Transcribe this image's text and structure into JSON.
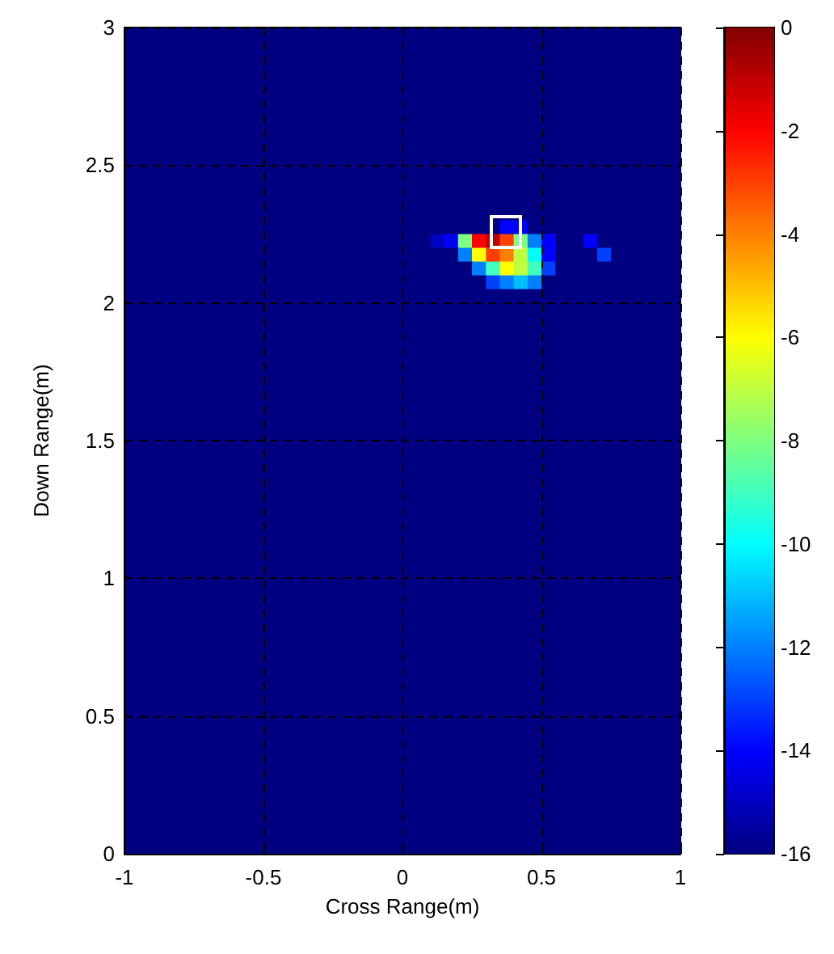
{
  "chart_data": {
    "type": "heatmap",
    "xlabel": "Cross Range(m)",
    "ylabel": "Down Range(m)",
    "xlim": [
      -1,
      1
    ],
    "ylim": [
      0,
      3
    ],
    "xticks": [
      -1,
      -0.5,
      0,
      0.5,
      1
    ],
    "yticks": [
      0,
      0.5,
      1,
      1.5,
      2,
      2.5,
      3
    ],
    "grid": true,
    "clim": [
      -16,
      0
    ],
    "cticks": [
      -16,
      -14,
      -12,
      -10,
      -8,
      -6,
      -4,
      -2,
      0
    ],
    "x": [
      -0.975,
      -0.925,
      -0.875,
      -0.825,
      -0.775,
      -0.725,
      -0.675,
      -0.625,
      -0.575,
      -0.525,
      -0.475,
      -0.425,
      -0.375,
      -0.325,
      -0.275,
      -0.225,
      -0.175,
      -0.125,
      -0.075,
      -0.025,
      0.025,
      0.075,
      0.125,
      0.175,
      0.225,
      0.275,
      0.325,
      0.375,
      0.425,
      0.475,
      0.525,
      0.575,
      0.625,
      0.675,
      0.725,
      0.775,
      0.825,
      0.875,
      0.925,
      0.975
    ],
    "y": [
      2.975,
      2.925,
      2.875,
      2.825,
      2.775,
      2.725,
      2.675,
      2.625,
      2.575,
      2.525,
      2.475,
      2.425,
      2.375,
      2.325,
      2.275,
      2.225,
      2.175,
      2.125,
      2.075,
      2.025,
      1.975,
      1.925,
      1.875,
      1.825,
      1.775,
      1.725,
      1.675,
      1.625,
      1.575,
      1.525,
      1.475,
      1.425,
      1.375,
      1.325,
      1.275,
      1.225,
      1.175,
      1.125,
      1.075,
      1.025,
      0.975,
      0.925,
      0.875,
      0.825,
      0.775,
      0.725,
      0.675,
      0.625,
      0.575,
      0.525,
      0.475,
      0.425,
      0.375,
      0.325,
      0.275,
      0.225,
      0.175,
      0.125,
      0.075,
      0.025
    ],
    "cells": [
      [
        -16,
        -16,
        -16,
        -16,
        -16,
        -16,
        -16,
        -16,
        -16,
        -16,
        -16,
        -16,
        -16,
        -16,
        -16,
        -16,
        -16,
        -16,
        -16,
        -16,
        -16,
        -16,
        -16,
        -16,
        -16,
        -16,
        -16,
        -16,
        -16,
        -16,
        -16,
        -16,
        -16,
        -16,
        -16,
        -16,
        -16,
        -16,
        -16,
        -16
      ],
      [
        -16,
        -16,
        -16,
        -16,
        -16,
        -16,
        -16,
        -16,
        -16,
        -16,
        -16,
        -16,
        -16,
        -16,
        -16,
        -16,
        -16,
        -16,
        -16,
        -16,
        -16,
        -16,
        -16,
        -16,
        -16,
        -16,
        -16,
        -16,
        -16,
        -16,
        -16,
        -16,
        -16,
        -16,
        -16,
        -16,
        -16,
        -16,
        -16,
        -16
      ],
      [
        -16,
        -16,
        -16,
        -16,
        -16,
        -16,
        -16,
        -16,
        -16,
        -16,
        -16,
        -16,
        -16,
        -16,
        -16,
        -16,
        -16,
        -16,
        -16,
        -16,
        -16,
        -16,
        -16,
        -16,
        -16,
        -16,
        -16,
        -16,
        -16,
        -16,
        -16,
        -16,
        -16,
        -16,
        -16,
        -16,
        -16,
        -16,
        -16,
        -16
      ],
      [
        -16,
        -16,
        -16,
        -16,
        -16,
        -16,
        -16,
        -16,
        -16,
        -16,
        -16,
        -16,
        -16,
        -16,
        -16,
        -16,
        -16,
        -16,
        -16,
        -16,
        -16,
        -16,
        -16,
        -16,
        -16,
        -16,
        -16,
        -16,
        -16,
        -16,
        -16,
        -16,
        -16,
        -16,
        -16,
        -16,
        -16,
        -16,
        -16,
        -16
      ],
      [
        -16,
        -16,
        -16,
        -16,
        -16,
        -16,
        -16,
        -16,
        -16,
        -16,
        -16,
        -16,
        -16,
        -16,
        -16,
        -16,
        -16,
        -16,
        -16,
        -16,
        -16,
        -16,
        -16,
        -16,
        -16,
        -16,
        -16,
        -16,
        -16,
        -16,
        -16,
        -16,
        -16,
        -16,
        -16,
        -16,
        -16,
        -16,
        -16,
        -16
      ],
      [
        -16,
        -16,
        -16,
        -16,
        -16,
        -16,
        -16,
        -16,
        -16,
        -16,
        -16,
        -16,
        -16,
        -16,
        -16,
        -16,
        -16,
        -16,
        -16,
        -16,
        -16,
        -16,
        -16,
        -16,
        -16,
        -16,
        -16,
        -16,
        -16,
        -16,
        -16,
        -16,
        -16,
        -16,
        -16,
        -16,
        -16,
        -16,
        -16,
        -16
      ],
      [
        -16,
        -16,
        -16,
        -16,
        -16,
        -16,
        -16,
        -16,
        -16,
        -16,
        -16,
        -16,
        -16,
        -16,
        -16,
        -16,
        -16,
        -16,
        -16,
        -16,
        -16,
        -16,
        -16,
        -16,
        -16,
        -16,
        -16,
        -16,
        -16,
        -16,
        -16,
        -16,
        -16,
        -16,
        -16,
        -16,
        -16,
        -16,
        -16,
        -16
      ],
      [
        -16,
        -16,
        -16,
        -16,
        -16,
        -16,
        -16,
        -16,
        -16,
        -16,
        -16,
        -16,
        -16,
        -16,
        -16,
        -16,
        -16,
        -16,
        -16,
        -16,
        -16,
        -16,
        -16,
        -16,
        -16,
        -16,
        -16,
        -16,
        -16,
        -16,
        -16,
        -16,
        -16,
        -16,
        -16,
        -16,
        -16,
        -16,
        -16,
        -16
      ],
      [
        -16,
        -16,
        -16,
        -16,
        -16,
        -16,
        -16,
        -16,
        -16,
        -16,
        -16,
        -16,
        -16,
        -16,
        -16,
        -16,
        -16,
        -16,
        -16,
        -16,
        -16,
        -16,
        -16,
        -16,
        -16,
        -16,
        -16,
        -16,
        -16,
        -16,
        -16,
        -16,
        -16,
        -16,
        -16,
        -16,
        -16,
        -16,
        -16,
        -16
      ],
      [
        -16,
        -16,
        -16,
        -16,
        -16,
        -16,
        -16,
        -16,
        -16,
        -16,
        -16,
        -16,
        -16,
        -16,
        -16,
        -16,
        -16,
        -16,
        -16,
        -16,
        -16,
        -16,
        -16,
        -16,
        -16,
        -16,
        -16,
        -16,
        -16,
        -16,
        -16,
        -16,
        -16,
        -16,
        -16,
        -16,
        -16,
        -16,
        -16,
        -16
      ],
      [
        -16,
        -16,
        -16,
        -16,
        -16,
        -16,
        -16,
        -16,
        -16,
        -16,
        -16,
        -16,
        -16,
        -16,
        -16,
        -16,
        -16,
        -16,
        -16,
        -16,
        -16,
        -16,
        -16,
        -16,
        -16,
        -16,
        -16,
        -16,
        -16,
        -16,
        -16,
        -16,
        -16,
        -16,
        -16,
        -16,
        -16,
        -16,
        -16,
        -16
      ],
      [
        -16,
        -16,
        -16,
        -16,
        -16,
        -16,
        -16,
        -16,
        -16,
        -16,
        -16,
        -16,
        -16,
        -16,
        -16,
        -16,
        -16,
        -16,
        -16,
        -16,
        -16,
        -16,
        -16,
        -16,
        -16,
        -16,
        -16,
        -16,
        -16,
        -16,
        -16,
        -16,
        -16,
        -16,
        -16,
        -16,
        -16,
        -16,
        -16,
        -16
      ],
      [
        -16,
        -16,
        -16,
        -16,
        -16,
        -16,
        -16,
        -16,
        -16,
        -16,
        -16,
        -16,
        -16,
        -16,
        -16,
        -16,
        -16,
        -16,
        -16,
        -16,
        -16,
        -16,
        -16,
        -16,
        -16,
        -16,
        -16,
        -16,
        -16,
        -16,
        -16,
        -16,
        -16,
        -16,
        -16,
        -16,
        -16,
        -16,
        -16,
        -16
      ],
      [
        -16,
        -16,
        -16,
        -16,
        -16,
        -16,
        -16,
        -16,
        -16,
        -16,
        -16,
        -16,
        -16,
        -16,
        -16,
        -16,
        -16,
        -16,
        -16,
        -16,
        -16,
        -16,
        -16,
        -16,
        -16,
        -16,
        -16,
        -16,
        -16,
        -16,
        -16,
        -16,
        -16,
        -16,
        -16,
        -16,
        -16,
        -16,
        -16,
        -16
      ],
      [
        -16,
        -16,
        -16,
        -16,
        -16,
        -16,
        -16,
        -16,
        -16,
        -16,
        -16,
        -16,
        -16,
        -16,
        -16,
        -16,
        -16,
        -16,
        -16,
        -16,
        -16,
        -16,
        -16,
        -16,
        -16,
        -16,
        -16,
        -14,
        -14,
        -16,
        -16,
        -16,
        -16,
        -16,
        -16,
        -16,
        -16,
        -16,
        -16,
        -16
      ],
      [
        -16,
        -16,
        -16,
        -16,
        -16,
        -16,
        -16,
        -16,
        -16,
        -16,
        -16,
        -16,
        -16,
        -16,
        -16,
        -16,
        -16,
        -16,
        -16,
        -16,
        -16,
        -16,
        -15,
        -14,
        -8,
        -2,
        -1,
        -3,
        -8,
        -12,
        -14,
        -16,
        -16,
        -14,
        -16,
        -16,
        -16,
        -16,
        -16,
        -16
      ],
      [
        -16,
        -16,
        -16,
        -16,
        -16,
        -16,
        -16,
        -16,
        -16,
        -16,
        -16,
        -16,
        -16,
        -16,
        -16,
        -16,
        -16,
        -16,
        -16,
        -16,
        -16,
        -16,
        -16,
        -16,
        -12,
        -6,
        -3,
        -4,
        -7,
        -10,
        -14,
        -16,
        -16,
        -16,
        -13,
        -16,
        -16,
        -16,
        -16,
        -16
      ],
      [
        -16,
        -16,
        -16,
        -16,
        -16,
        -16,
        -16,
        -16,
        -16,
        -16,
        -16,
        -16,
        -16,
        -16,
        -16,
        -16,
        -16,
        -16,
        -16,
        -16,
        -16,
        -16,
        -16,
        -16,
        -16,
        -12,
        -9,
        -6,
        -7,
        -9,
        -13,
        -16,
        -16,
        -16,
        -16,
        -16,
        -16,
        -16,
        -16,
        -16
      ],
      [
        -16,
        -16,
        -16,
        -16,
        -16,
        -16,
        -16,
        -16,
        -16,
        -16,
        -16,
        -16,
        -16,
        -16,
        -16,
        -16,
        -16,
        -16,
        -16,
        -16,
        -16,
        -16,
        -16,
        -16,
        -16,
        -16,
        -13,
        -12,
        -11,
        -12,
        -16,
        -16,
        -16,
        -16,
        -16,
        -16,
        -16,
        -16,
        -16,
        -16
      ],
      [
        -16,
        -16,
        -16,
        -16,
        -16,
        -16,
        -16,
        -16,
        -16,
        -16,
        -16,
        -16,
        -16,
        -16,
        -16,
        -16,
        -16,
        -16,
        -16,
        -16,
        -16,
        -16,
        -16,
        -16,
        -16,
        -16,
        -16,
        -16,
        -16,
        -16,
        -16,
        -16,
        -16,
        -16,
        -16,
        -16,
        -16,
        -16,
        -16,
        -16
      ],
      [
        -16,
        -16,
        -16,
        -16,
        -16,
        -16,
        -16,
        -16,
        -16,
        -16,
        -16,
        -16,
        -16,
        -16,
        -16,
        -16,
        -16,
        -16,
        -16,
        -16,
        -16,
        -16,
        -16,
        -16,
        -16,
        -16,
        -16,
        -16,
        -16,
        -16,
        -16,
        -16,
        -16,
        -16,
        -16,
        -16,
        -16,
        -16,
        -16,
        -16
      ],
      [
        -16,
        -16,
        -16,
        -16,
        -16,
        -16,
        -16,
        -16,
        -16,
        -16,
        -16,
        -16,
        -16,
        -16,
        -16,
        -16,
        -16,
        -16,
        -16,
        -16,
        -16,
        -16,
        -16,
        -16,
        -16,
        -16,
        -16,
        -16,
        -16,
        -16,
        -16,
        -16,
        -16,
        -16,
        -16,
        -16,
        -16,
        -16,
        -16,
        -16
      ],
      [
        -16,
        -16,
        -16,
        -16,
        -16,
        -16,
        -16,
        -16,
        -16,
        -16,
        -16,
        -16,
        -16,
        -16,
        -16,
        -16,
        -16,
        -16,
        -16,
        -16,
        -16,
        -16,
        -16,
        -16,
        -16,
        -16,
        -16,
        -16,
        -16,
        -16,
        -16,
        -16,
        -16,
        -16,
        -16,
        -16,
        -16,
        -16,
        -16,
        -16
      ],
      [
        -16,
        -16,
        -16,
        -16,
        -16,
        -16,
        -16,
        -16,
        -16,
        -16,
        -16,
        -16,
        -16,
        -16,
        -16,
        -16,
        -16,
        -16,
        -16,
        -16,
        -16,
        -16,
        -16,
        -16,
        -16,
        -16,
        -16,
        -16,
        -16,
        -16,
        -16,
        -16,
        -16,
        -16,
        -16,
        -16,
        -16,
        -16,
        -16,
        -16
      ],
      [
        -16,
        -16,
        -16,
        -16,
        -16,
        -16,
        -16,
        -16,
        -16,
        -16,
        -16,
        -16,
        -16,
        -16,
        -16,
        -16,
        -16,
        -16,
        -16,
        -16,
        -16,
        -16,
        -16,
        -16,
        -16,
        -16,
        -16,
        -16,
        -16,
        -16,
        -16,
        -16,
        -16,
        -16,
        -16,
        -16,
        -16,
        -16,
        -16,
        -16
      ],
      [
        -16,
        -16,
        -16,
        -16,
        -16,
        -16,
        -16,
        -16,
        -16,
        -16,
        -16,
        -16,
        -16,
        -16,
        -16,
        -16,
        -16,
        -16,
        -16,
        -16,
        -16,
        -16,
        -16,
        -16,
        -16,
        -16,
        -16,
        -16,
        -16,
        -16,
        -16,
        -16,
        -16,
        -16,
        -16,
        -16,
        -16,
        -16,
        -16,
        -16
      ],
      [
        -16,
        -16,
        -16,
        -16,
        -16,
        -16,
        -16,
        -16,
        -16,
        -16,
        -16,
        -16,
        -16,
        -16,
        -16,
        -16,
        -16,
        -16,
        -16,
        -16,
        -16,
        -16,
        -16,
        -16,
        -16,
        -16,
        -16,
        -16,
        -16,
        -16,
        -16,
        -16,
        -16,
        -16,
        -16,
        -16,
        -16,
        -16,
        -16,
        -16
      ],
      [
        -16,
        -16,
        -16,
        -16,
        -16,
        -16,
        -16,
        -16,
        -16,
        -16,
        -16,
        -16,
        -16,
        -16,
        -16,
        -16,
        -16,
        -16,
        -16,
        -16,
        -16,
        -16,
        -16,
        -16,
        -16,
        -16,
        -16,
        -16,
        -16,
        -16,
        -16,
        -16,
        -16,
        -16,
        -16,
        -16,
        -16,
        -16,
        -16,
        -16
      ],
      [
        -16,
        -16,
        -16,
        -16,
        -16,
        -16,
        -16,
        -16,
        -16,
        -16,
        -16,
        -16,
        -16,
        -16,
        -16,
        -16,
        -16,
        -16,
        -16,
        -16,
        -16,
        -16,
        -16,
        -16,
        -16,
        -16,
        -16,
        -16,
        -16,
        -16,
        -16,
        -16,
        -16,
        -16,
        -16,
        -16,
        -16,
        -16,
        -16,
        -16
      ],
      [
        -16,
        -16,
        -16,
        -16,
        -16,
        -16,
        -16,
        -16,
        -16,
        -16,
        -16,
        -16,
        -16,
        -16,
        -16,
        -16,
        -16,
        -16,
        -16,
        -16,
        -16,
        -16,
        -16,
        -16,
        -16,
        -16,
        -16,
        -16,
        -16,
        -16,
        -16,
        -16,
        -16,
        -16,
        -16,
        -16,
        -16,
        -16,
        -16,
        -16
      ],
      [
        -16,
        -16,
        -16,
        -16,
        -16,
        -16,
        -16,
        -16,
        -16,
        -16,
        -16,
        -16,
        -16,
        -16,
        -16,
        -16,
        -16,
        -16,
        -16,
        -16,
        -16,
        -16,
        -16,
        -16,
        -16,
        -16,
        -16,
        -16,
        -16,
        -16,
        -16,
        -16,
        -16,
        -16,
        -16,
        -16,
        -16,
        -16,
        -16,
        -16
      ],
      [
        -16,
        -16,
        -16,
        -16,
        -16,
        -16,
        -16,
        -16,
        -16,
        -16,
        -16,
        -16,
        -16,
        -16,
        -16,
        -16,
        -16,
        -16,
        -16,
        -16,
        -16,
        -16,
        -16,
        -16,
        -16,
        -16,
        -16,
        -16,
        -16,
        -16,
        -16,
        -16,
        -16,
        -16,
        -16,
        -16,
        -16,
        -16,
        -16,
        -16
      ],
      [
        -16,
        -16,
        -16,
        -16,
        -16,
        -16,
        -16,
        -16,
        -16,
        -16,
        -16,
        -16,
        -16,
        -16,
        -16,
        -16,
        -16,
        -16,
        -16,
        -16,
        -16,
        -16,
        -16,
        -16,
        -16,
        -16,
        -16,
        -16,
        -16,
        -16,
        -16,
        -16,
        -16,
        -16,
        -16,
        -16,
        -16,
        -16,
        -16,
        -16
      ],
      [
        -16,
        -16,
        -16,
        -16,
        -16,
        -16,
        -16,
        -16,
        -16,
        -16,
        -16,
        -16,
        -16,
        -16,
        -16,
        -16,
        -16,
        -16,
        -16,
        -16,
        -16,
        -16,
        -16,
        -16,
        -16,
        -16,
        -16,
        -16,
        -16,
        -16,
        -16,
        -16,
        -16,
        -16,
        -16,
        -16,
        -16,
        -16,
        -16,
        -16
      ],
      [
        -16,
        -16,
        -16,
        -16,
        -16,
        -16,
        -16,
        -16,
        -16,
        -16,
        -16,
        -16,
        -16,
        -16,
        -16,
        -16,
        -16,
        -16,
        -16,
        -16,
        -16,
        -16,
        -16,
        -16,
        -16,
        -16,
        -16,
        -16,
        -16,
        -16,
        -16,
        -16,
        -16,
        -16,
        -16,
        -16,
        -16,
        -16,
        -16,
        -16
      ],
      [
        -16,
        -16,
        -16,
        -16,
        -16,
        -16,
        -16,
        -16,
        -16,
        -16,
        -16,
        -16,
        -16,
        -16,
        -16,
        -16,
        -16,
        -16,
        -16,
        -16,
        -16,
        -16,
        -16,
        -16,
        -16,
        -16,
        -16,
        -16,
        -16,
        -16,
        -16,
        -16,
        -16,
        -16,
        -16,
        -16,
        -16,
        -16,
        -16,
        -16
      ],
      [
        -16,
        -16,
        -16,
        -16,
        -16,
        -16,
        -16,
        -16,
        -16,
        -16,
        -16,
        -16,
        -16,
        -16,
        -16,
        -16,
        -16,
        -16,
        -16,
        -16,
        -16,
        -16,
        -16,
        -16,
        -16,
        -16,
        -16,
        -16,
        -16,
        -16,
        -16,
        -16,
        -16,
        -16,
        -16,
        -16,
        -16,
        -16,
        -16,
        -16
      ],
      [
        -16,
        -16,
        -16,
        -16,
        -16,
        -16,
        -16,
        -16,
        -16,
        -16,
        -16,
        -16,
        -16,
        -16,
        -16,
        -16,
        -16,
        -16,
        -16,
        -16,
        -16,
        -16,
        -16,
        -16,
        -16,
        -16,
        -16,
        -16,
        -16,
        -16,
        -16,
        -16,
        -16,
        -16,
        -16,
        -16,
        -16,
        -16,
        -16,
        -16
      ],
      [
        -16,
        -16,
        -16,
        -16,
        -16,
        -16,
        -16,
        -16,
        -16,
        -16,
        -16,
        -16,
        -16,
        -16,
        -16,
        -16,
        -16,
        -16,
        -16,
        -16,
        -16,
        -16,
        -16,
        -16,
        -16,
        -16,
        -16,
        -16,
        -16,
        -16,
        -16,
        -16,
        -16,
        -16,
        -16,
        -16,
        -16,
        -16,
        -16,
        -16
      ],
      [
        -16,
        -16,
        -16,
        -16,
        -16,
        -16,
        -16,
        -16,
        -16,
        -16,
        -16,
        -16,
        -16,
        -16,
        -16,
        -16,
        -16,
        -16,
        -16,
        -16,
        -16,
        -16,
        -16,
        -16,
        -16,
        -16,
        -16,
        -16,
        -16,
        -16,
        -16,
        -16,
        -16,
        -16,
        -16,
        -16,
        -16,
        -16,
        -16,
        -16
      ],
      [
        -16,
        -16,
        -16,
        -16,
        -16,
        -16,
        -16,
        -16,
        -16,
        -16,
        -16,
        -16,
        -16,
        -16,
        -16,
        -16,
        -16,
        -16,
        -16,
        -16,
        -16,
        -16,
        -16,
        -16,
        -16,
        -16,
        -16,
        -16,
        -16,
        -16,
        -16,
        -16,
        -16,
        -16,
        -16,
        -16,
        -16,
        -16,
        -16,
        -16
      ],
      [
        -16,
        -16,
        -16,
        -16,
        -16,
        -16,
        -16,
        -16,
        -16,
        -16,
        -16,
        -16,
        -16,
        -16,
        -16,
        -16,
        -16,
        -16,
        -16,
        -16,
        -16,
        -16,
        -16,
        -16,
        -16,
        -16,
        -16,
        -16,
        -16,
        -16,
        -16,
        -16,
        -16,
        -16,
        -16,
        -16,
        -16,
        -16,
        -16,
        -16
      ],
      [
        -16,
        -16,
        -16,
        -16,
        -16,
        -16,
        -16,
        -16,
        -16,
        -16,
        -16,
        -16,
        -16,
        -16,
        -16,
        -16,
        -16,
        -16,
        -16,
        -16,
        -16,
        -16,
        -16,
        -16,
        -16,
        -16,
        -16,
        -16,
        -16,
        -16,
        -16,
        -16,
        -16,
        -16,
        -16,
        -16,
        -16,
        -16,
        -16,
        -16
      ],
      [
        -16,
        -16,
        -16,
        -16,
        -16,
        -16,
        -16,
        -16,
        -16,
        -16,
        -16,
        -16,
        -16,
        -16,
        -16,
        -16,
        -16,
        -16,
        -16,
        -16,
        -16,
        -16,
        -16,
        -16,
        -16,
        -16,
        -16,
        -16,
        -16,
        -16,
        -16,
        -16,
        -16,
        -16,
        -16,
        -16,
        -16,
        -16,
        -16,
        -16
      ],
      [
        -16,
        -16,
        -16,
        -16,
        -16,
        -16,
        -16,
        -16,
        -16,
        -16,
        -16,
        -16,
        -16,
        -16,
        -16,
        -16,
        -16,
        -16,
        -16,
        -16,
        -16,
        -16,
        -16,
        -16,
        -16,
        -16,
        -16,
        -16,
        -16,
        -16,
        -16,
        -16,
        -16,
        -16,
        -16,
        -16,
        -16,
        -16,
        -16,
        -16
      ],
      [
        -16,
        -16,
        -16,
        -16,
        -16,
        -16,
        -16,
        -16,
        -16,
        -16,
        -16,
        -16,
        -16,
        -16,
        -16,
        -16,
        -16,
        -16,
        -16,
        -16,
        -16,
        -16,
        -16,
        -16,
        -16,
        -16,
        -16,
        -16,
        -16,
        -16,
        -16,
        -16,
        -16,
        -16,
        -16,
        -16,
        -16,
        -16,
        -16,
        -16
      ],
      [
        -16,
        -16,
        -16,
        -16,
        -16,
        -16,
        -16,
        -16,
        -16,
        -16,
        -16,
        -16,
        -16,
        -16,
        -16,
        -16,
        -16,
        -16,
        -16,
        -16,
        -16,
        -16,
        -16,
        -16,
        -16,
        -16,
        -16,
        -16,
        -16,
        -16,
        -16,
        -16,
        -16,
        -16,
        -16,
        -16,
        -16,
        -16,
        -16,
        -16
      ],
      [
        -16,
        -16,
        -16,
        -16,
        -16,
        -16,
        -16,
        -16,
        -16,
        -16,
        -16,
        -16,
        -16,
        -16,
        -16,
        -16,
        -16,
        -16,
        -16,
        -16,
        -16,
        -16,
        -16,
        -16,
        -16,
        -16,
        -16,
        -16,
        -16,
        -16,
        -16,
        -16,
        -16,
        -16,
        -16,
        -16,
        -16,
        -16,
        -16,
        -16
      ],
      [
        -16,
        -16,
        -16,
        -16,
        -16,
        -16,
        -16,
        -16,
        -16,
        -16,
        -16,
        -16,
        -16,
        -16,
        -16,
        -16,
        -16,
        -16,
        -16,
        -16,
        -16,
        -16,
        -16,
        -16,
        -16,
        -16,
        -16,
        -16,
        -16,
        -16,
        -16,
        -16,
        -16,
        -16,
        -16,
        -16,
        -16,
        -16,
        -16,
        -16
      ],
      [
        -16,
        -16,
        -16,
        -16,
        -16,
        -16,
        -16,
        -16,
        -16,
        -16,
        -16,
        -16,
        -16,
        -16,
        -16,
        -16,
        -16,
        -16,
        -16,
        -16,
        -16,
        -16,
        -16,
        -16,
        -16,
        -16,
        -16,
        -16,
        -16,
        -16,
        -16,
        -16,
        -16,
        -16,
        -16,
        -16,
        -16,
        -16,
        -16,
        -16
      ],
      [
        -16,
        -16,
        -16,
        -16,
        -16,
        -16,
        -16,
        -16,
        -16,
        -16,
        -16,
        -16,
        -16,
        -16,
        -16,
        -16,
        -16,
        -16,
        -16,
        -16,
        -16,
        -16,
        -16,
        -16,
        -16,
        -16,
        -16,
        -16,
        -16,
        -16,
        -16,
        -16,
        -16,
        -16,
        -16,
        -16,
        -16,
        -16,
        -16,
        -16
      ],
      [
        -16,
        -16,
        -16,
        -16,
        -16,
        -16,
        -16,
        -16,
        -16,
        -16,
        -16,
        -16,
        -16,
        -16,
        -16,
        -16,
        -16,
        -16,
        -16,
        -16,
        -16,
        -16,
        -16,
        -16,
        -16,
        -16,
        -16,
        -16,
        -16,
        -16,
        -16,
        -16,
        -16,
        -16,
        -16,
        -16,
        -16,
        -16,
        -16,
        -16
      ],
      [
        -16,
        -16,
        -16,
        -16,
        -16,
        -16,
        -16,
        -16,
        -16,
        -16,
        -16,
        -16,
        -16,
        -16,
        -16,
        -16,
        -16,
        -16,
        -16,
        -16,
        -16,
        -16,
        -16,
        -16,
        -16,
        -16,
        -16,
        -16,
        -16,
        -16,
        -16,
        -16,
        -16,
        -16,
        -16,
        -16,
        -16,
        -16,
        -16,
        -16
      ],
      [
        -16,
        -16,
        -16,
        -16,
        -16,
        -16,
        -16,
        -16,
        -16,
        -16,
        -16,
        -16,
        -16,
        -16,
        -16,
        -16,
        -16,
        -16,
        -16,
        -16,
        -16,
        -16,
        -16,
        -16,
        -16,
        -16,
        -16,
        -16,
        -16,
        -16,
        -16,
        -16,
        -16,
        -16,
        -16,
        -16,
        -16,
        -16,
        -16,
        -16
      ],
      [
        -16,
        -16,
        -16,
        -16,
        -16,
        -16,
        -16,
        -16,
        -16,
        -16,
        -16,
        -16,
        -16,
        -16,
        -16,
        -16,
        -16,
        -16,
        -16,
        -16,
        -16,
        -16,
        -16,
        -16,
        -16,
        -16,
        -16,
        -16,
        -16,
        -16,
        -16,
        -16,
        -16,
        -16,
        -16,
        -16,
        -16,
        -16,
        -16,
        -16
      ],
      [
        -16,
        -16,
        -16,
        -16,
        -16,
        -16,
        -16,
        -16,
        -16,
        -16,
        -16,
        -16,
        -16,
        -16,
        -16,
        -16,
        -16,
        -16,
        -16,
        -16,
        -16,
        -16,
        -16,
        -16,
        -16,
        -16,
        -16,
        -16,
        -16,
        -16,
        -16,
        -16,
        -16,
        -16,
        -16,
        -16,
        -16,
        -16,
        -16,
        -16
      ],
      [
        -16,
        -16,
        -16,
        -16,
        -16,
        -16,
        -16,
        -16,
        -16,
        -16,
        -16,
        -16,
        -16,
        -16,
        -16,
        -16,
        -16,
        -16,
        -16,
        -16,
        -16,
        -16,
        -16,
        -16,
        -16,
        -16,
        -16,
        -16,
        -16,
        -16,
        -16,
        -16,
        -16,
        -16,
        -16,
        -16,
        -16,
        -16,
        -16,
        -16
      ],
      [
        -16,
        -16,
        -16,
        -16,
        -16,
        -16,
        -16,
        -16,
        -16,
        -16,
        -16,
        -16,
        -16,
        -16,
        -16,
        -16,
        -16,
        -16,
        -16,
        -16,
        -16,
        -16,
        -16,
        -16,
        -16,
        -16,
        -16,
        -16,
        -16,
        -16,
        -16,
        -16,
        -16,
        -16,
        -16,
        -16,
        -16,
        -16,
        -16,
        -16
      ],
      [
        -16,
        -16,
        -16,
        -16,
        -16,
        -16,
        -16,
        -16,
        -16,
        -16,
        -16,
        -16,
        -16,
        -16,
        -16,
        -16,
        -16,
        -16,
        -16,
        -16,
        -16,
        -16,
        -16,
        -16,
        -16,
        -16,
        -16,
        -16,
        -16,
        -16,
        -16,
        -16,
        -16,
        -16,
        -16,
        -16,
        -16,
        -16,
        -16,
        -16
      ],
      [
        -16,
        -16,
        -16,
        -16,
        -16,
        -16,
        -16,
        -16,
        -16,
        -16,
        -16,
        -16,
        -16,
        -16,
        -16,
        -16,
        -16,
        -16,
        -16,
        -16,
        -16,
        -16,
        -16,
        -16,
        -16,
        -16,
        -16,
        -16,
        -16,
        -16,
        -16,
        -16,
        -16,
        -16,
        -16,
        -16,
        -16,
        -16,
        -16,
        -16
      ]
    ]
  }
}
